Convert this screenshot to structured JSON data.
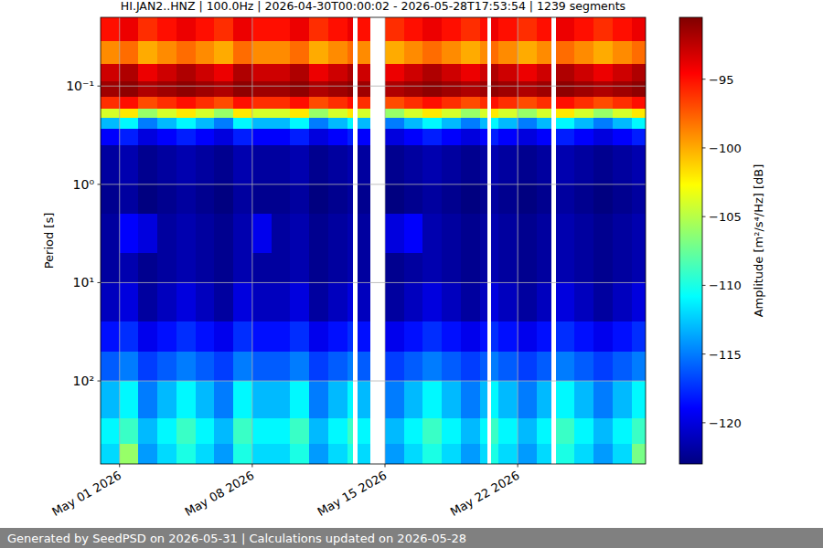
{
  "chart_data": {
    "type": "heatmap",
    "title": "HI.JAN2..HNZ | 100.0Hz | 2026-04-30T00:00:02 - 2026-05-28T17:53:54 | 1239 segments",
    "y_label": "Period [s]",
    "footer": "Generated by SeedPSD on 2026-05-31 | Calculations updated on 2026-05-28",
    "log": "y",
    "grid": true,
    "xlim": [
      "2026-04-30T00:00:02",
      "2026-05-28T17:53:54"
    ],
    "xticks": [
      {
        "value": "2026-05-01T00:00:00",
        "label": "May 01 2026"
      },
      {
        "value": "2026-05-08T00:00:00",
        "label": "May 08 2026"
      },
      {
        "value": "2026-05-15T00:00:00",
        "label": "May 15 2026"
      },
      {
        "value": "2026-05-22T00:00:00",
        "label": "May 22 2026"
      }
    ],
    "ylim": [
      700,
      0.02
    ],
    "yticks": [
      {
        "value": 0.1,
        "label": "10⁻¹"
      },
      {
        "value": 1,
        "label": "10⁰"
      },
      {
        "value": 10,
        "label": "10¹"
      },
      {
        "value": 100,
        "label": "10²"
      }
    ],
    "colorbar": {
      "label": "Amplitude [m²/s⁴/Hz] [dB]",
      "range": [
        -123,
        -90.5
      ],
      "ticks": [
        {
          "value": -120,
          "label": "−120"
        },
        {
          "value": -115,
          "label": "−115"
        },
        {
          "value": -110,
          "label": "−110"
        },
        {
          "value": -105,
          "label": "−105"
        },
        {
          "value": -100,
          "label": "−100"
        },
        {
          "value": -95,
          "label": "−95"
        }
      ]
    },
    "x_edges": [
      "2026-04-30T00:00:02",
      "2026-05-01T00:00:00",
      "2026-05-02T00:00:00",
      "2026-05-03T00:00:00",
      "2026-05-04T00:00:00",
      "2026-05-05T00:00:00",
      "2026-05-06T00:00:00",
      "2026-05-07T00:00:00",
      "2026-05-08T00:00:00",
      "2026-05-09T00:00:00",
      "2026-05-10T00:00:00",
      "2026-05-11T00:00:00",
      "2026-05-12T00:00:00",
      "2026-05-13T00:00:00",
      "2026-05-13T07:12:00",
      "2026-05-13T13:12:00",
      "2026-05-14T04:48:00",
      "2026-05-15T00:00:00",
      "2026-05-16T00:00:00",
      "2026-05-17T00:00:00",
      "2026-05-18T00:00:00",
      "2026-05-19T00:00:00",
      "2026-05-20T00:00:00",
      "2026-05-20T09:36:00",
      "2026-05-20T14:24:00",
      "2026-05-21T00:00:00",
      "2026-05-22T00:00:00",
      "2026-05-23T00:00:00",
      "2026-05-23T18:00:00",
      "2026-05-24T00:00:00",
      "2026-05-25T00:00:00",
      "2026-05-26T00:00:00",
      "2026-05-27T00:00:00",
      "2026-05-28T00:00:00",
      "2026-05-28T17:53:54"
    ],
    "y_edges": [
      0.02,
      0.035,
      0.06,
      0.09,
      0.13,
      0.17,
      0.21,
      0.27,
      0.4,
      1,
      2,
      5,
      10,
      25,
      50,
      100,
      240,
      440,
      700
    ],
    "cells": [
      [
        -95,
        -94,
        -96,
        -95,
        -94,
        -95,
        -96,
        -94,
        -95,
        -95,
        -94,
        -96,
        -95,
        -94,
        null,
        -95,
        null,
        -96,
        -95,
        -94,
        -95,
        -96,
        -95,
        null,
        -94,
        -95,
        -96,
        -95,
        null,
        -94,
        -95,
        -96,
        -95,
        -94
      ],
      [
        -99,
        -98,
        -100,
        -99,
        -98,
        -99,
        -100,
        -98,
        -99,
        -99,
        -98,
        -100,
        -99,
        -98,
        null,
        -99,
        null,
        -100,
        -99,
        -98,
        -99,
        -100,
        -99,
        null,
        -98,
        -99,
        -100,
        -99,
        null,
        -98,
        -99,
        -100,
        -99,
        -98
      ],
      [
        -93,
        -92,
        -94,
        -93,
        -92,
        -93,
        -94,
        -92,
        -93,
        -93,
        -92,
        -94,
        -93,
        -92,
        null,
        -93,
        null,
        -94,
        -93,
        -92,
        -93,
        -94,
        -93,
        null,
        -92,
        -93,
        -94,
        -93,
        null,
        -92,
        -93,
        -94,
        -93,
        -92
      ],
      [
        -91.5,
        -91,
        -92,
        -91.5,
        -91,
        -91.5,
        -92,
        -91,
        -91.5,
        -91.5,
        -91,
        -92,
        -91.5,
        -91,
        null,
        -91.5,
        null,
        -92,
        -91.5,
        -91,
        -91.5,
        -92,
        -91.5,
        null,
        -91,
        -91.5,
        -92,
        -91.5,
        null,
        -91,
        -91.5,
        -92,
        -91.5,
        -91
      ],
      [
        -96,
        -95,
        -97,
        -96,
        -95,
        -96,
        -97,
        -95,
        -96,
        -96,
        -95,
        -97,
        -96,
        -95,
        null,
        -96,
        null,
        -97,
        -96,
        -95,
        -96,
        -97,
        -96,
        null,
        -95,
        -96,
        -97,
        -96,
        null,
        -95,
        -96,
        -97,
        -96,
        -95
      ],
      [
        -104,
        -102,
        -106,
        -104,
        -102,
        -104,
        -106,
        -102,
        -104,
        -104,
        -102,
        -106,
        -104,
        -102,
        null,
        -104,
        null,
        -106,
        -104,
        -102,
        -104,
        -106,
        -104,
        null,
        -102,
        -104,
        -106,
        -104,
        null,
        -102,
        -104,
        -106,
        -104,
        -102
      ],
      [
        -113,
        -111,
        -115,
        -113,
        -111,
        -113,
        -115,
        -111,
        -113,
        -113,
        -111,
        -115,
        -113,
        -111,
        null,
        -113,
        null,
        -115,
        -113,
        -111,
        -113,
        -115,
        -113,
        null,
        -111,
        -113,
        -115,
        -113,
        null,
        -111,
        -113,
        -115,
        -113,
        -111
      ],
      [
        -119,
        -118,
        -120,
        -119,
        -118,
        -119,
        -120,
        -118,
        -119,
        -119,
        -118,
        -120,
        -119,
        -118,
        null,
        -119,
        null,
        -120,
        -119,
        -118,
        -119,
        -120,
        -119,
        null,
        -118,
        -119,
        -120,
        -119,
        null,
        -118,
        -119,
        -120,
        -119,
        -118
      ],
      [
        -122,
        -121.5,
        -122.5,
        -122,
        -121.5,
        -122,
        -122.5,
        -121.5,
        -122,
        -122,
        -121.5,
        -122.5,
        -122,
        -121.5,
        null,
        -122,
        null,
        -122.5,
        -122,
        -121.5,
        -122,
        -122.5,
        -122,
        null,
        -121.5,
        -122,
        -122.5,
        -122,
        null,
        -121.5,
        -122,
        -122.5,
        -122,
        -121.5
      ],
      [
        -122.5,
        -122,
        -123,
        -122.5,
        -122,
        -122.5,
        -123,
        -122,
        -122.5,
        -122.5,
        -122,
        -123,
        -122.5,
        -122,
        null,
        -122.5,
        null,
        -123,
        -122.5,
        -122,
        -122.5,
        -123,
        -122.5,
        null,
        -122,
        -122.5,
        -123,
        -122.5,
        null,
        -122,
        -122.5,
        -123,
        -122.5,
        -122
      ],
      [
        -122,
        -119,
        -120,
        -122,
        -121.5,
        -122,
        -122.5,
        -121.5,
        -119.5,
        -122,
        -121.5,
        -122.5,
        -122,
        -121.5,
        null,
        -122,
        null,
        -120,
        -119,
        -121.5,
        -122,
        -122.5,
        -122,
        null,
        -121.5,
        -122,
        -122.5,
        -122,
        null,
        -121.5,
        -122,
        -122.5,
        -122,
        -121.5
      ],
      [
        -122,
        -121.5,
        -122.5,
        -122,
        -121.5,
        -122,
        -122.5,
        -121.5,
        -122,
        -122,
        -121.5,
        -122.5,
        -122,
        -121.5,
        null,
        -122,
        null,
        -122.5,
        -122,
        -121.5,
        -122,
        -122.5,
        -122,
        null,
        -121.5,
        -122,
        -122.5,
        -122,
        null,
        -121.5,
        -122,
        -122.5,
        -122,
        -121.5
      ],
      [
        -121,
        -120,
        -122,
        -121,
        -120,
        -121,
        -122,
        -120,
        -121,
        -121,
        -120,
        -122,
        -121,
        -120,
        null,
        -121,
        null,
        -122,
        -121,
        -120,
        -121,
        -122,
        -121,
        null,
        -120,
        -121,
        -122,
        -121,
        null,
        -120,
        -121,
        -122,
        -121,
        -120
      ],
      [
        -118.5,
        -117.5,
        -119.5,
        -118.5,
        -117.5,
        -118.5,
        -119.5,
        -117.5,
        -118.5,
        -118.5,
        -117.5,
        -119.5,
        -118.5,
        -117.5,
        null,
        -118.5,
        null,
        -119.5,
        -118.5,
        -117.5,
        -118.5,
        -119.5,
        -118.5,
        null,
        -117.5,
        -118.5,
        -119.5,
        -118.5,
        null,
        -117.5,
        -118.5,
        -119.5,
        -118.5,
        -117.5
      ],
      [
        -116,
        -115,
        -117,
        -116,
        -115,
        -116,
        -117,
        -115,
        -116,
        -116,
        -115,
        -117,
        -116,
        -115,
        null,
        -116,
        null,
        -117,
        -116,
        -115,
        -116,
        -117,
        -116,
        null,
        -115,
        -116,
        -117,
        -116,
        null,
        -115,
        -116,
        -117,
        -116,
        -115
      ],
      [
        -113,
        -111,
        -115,
        -113,
        -111,
        -113,
        -115,
        -111,
        -113,
        -113,
        -111,
        -115,
        -113,
        -111,
        null,
        -113,
        null,
        -115,
        -113,
        -111,
        -113,
        -115,
        -113,
        null,
        -111,
        -113,
        -115,
        -113,
        null,
        -111,
        -113,
        -115,
        -113,
        -111
      ],
      [
        -111,
        -109,
        -113,
        -111,
        -109,
        -111,
        -113,
        -109,
        -111,
        -111,
        -109,
        -113,
        -111,
        -109,
        null,
        -111,
        null,
        -113,
        -111,
        -109,
        -111,
        -113,
        -111,
        null,
        -109,
        -111,
        -113,
        -111,
        null,
        -109,
        -111,
        -113,
        -111,
        -109
      ],
      [
        -112,
        -106,
        -114,
        -112,
        -110,
        -112,
        -114,
        -110,
        -112,
        -112,
        -110,
        -114,
        -112,
        -110,
        null,
        -112,
        null,
        -114,
        -112,
        -110,
        -112,
        -114,
        -112,
        null,
        -110,
        -112,
        -114,
        -112,
        null,
        -110,
        -112,
        -114,
        -112,
        -107
      ]
    ]
  }
}
